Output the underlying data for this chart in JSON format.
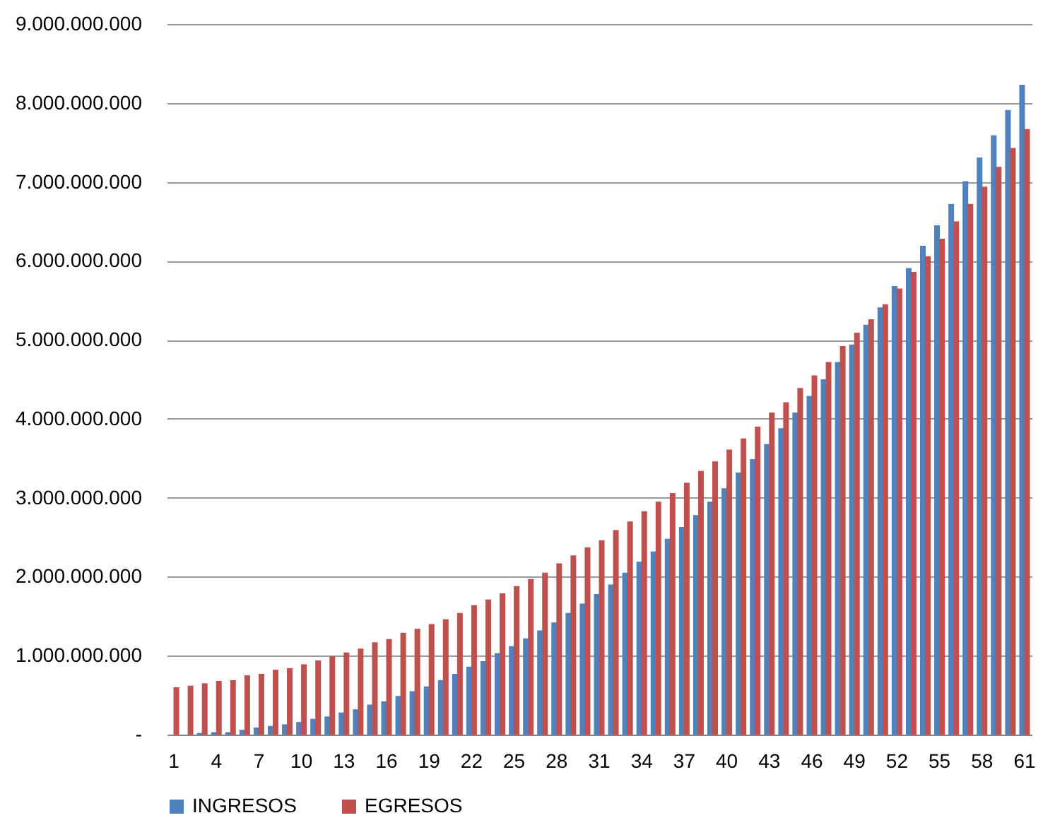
{
  "chart_data": {
    "type": "bar",
    "categories": [
      "1",
      null,
      null,
      "4",
      null,
      null,
      "7",
      null,
      null,
      "10",
      null,
      null,
      "13",
      null,
      null,
      "16",
      null,
      null,
      "19",
      null,
      null,
      "22",
      null,
      null,
      "25",
      null,
      null,
      "28",
      null,
      null,
      "31",
      null,
      null,
      "34",
      null,
      null,
      "37",
      null,
      null,
      "40",
      null,
      null,
      "43",
      null,
      null,
      "46",
      null,
      null,
      "49",
      null,
      null,
      "52",
      null,
      null,
      "55",
      null,
      null,
      "58",
      null,
      null,
      "61"
    ],
    "series": [
      {
        "name": "INGRESOS",
        "color": "#4f81bd",
        "values": [
          null,
          null,
          20000000,
          30000000,
          30000000,
          60000000,
          90000000,
          110000000,
          130000000,
          160000000,
          200000000,
          230000000,
          280000000,
          320000000,
          380000000,
          420000000,
          490000000,
          550000000,
          610000000,
          690000000,
          770000000,
          860000000,
          930000000,
          1030000000,
          1120000000,
          1220000000,
          1320000000,
          1420000000,
          1540000000,
          1660000000,
          1780000000,
          1900000000,
          2050000000,
          2190000000,
          2320000000,
          2480000000,
          2630000000,
          2780000000,
          2950000000,
          3120000000,
          3320000000,
          3490000000,
          3680000000,
          3880000000,
          4080000000,
          4290000000,
          4500000000,
          4720000000,
          4940000000,
          5190000000,
          5410000000,
          5680000000,
          5910000000,
          6190000000,
          6450000000,
          6720000000,
          7010000000,
          7310000000,
          7590000000,
          7910000000,
          8230000000
        ]
      },
      {
        "name": "EGRESOS",
        "color": "#c0504d",
        "values": [
          600000000,
          620000000,
          650000000,
          680000000,
          690000000,
          750000000,
          770000000,
          820000000,
          840000000,
          890000000,
          940000000,
          990000000,
          1040000000,
          1090000000,
          1170000000,
          1210000000,
          1290000000,
          1340000000,
          1400000000,
          1460000000,
          1540000000,
          1640000000,
          1710000000,
          1790000000,
          1880000000,
          1970000000,
          2050000000,
          2170000000,
          2270000000,
          2370000000,
          2460000000,
          2590000000,
          2700000000,
          2830000000,
          2950000000,
          3060000000,
          3190000000,
          3340000000,
          3460000000,
          3610000000,
          3750000000,
          3900000000,
          4080000000,
          4210000000,
          4390000000,
          4550000000,
          4720000000,
          4920000000,
          5090000000,
          5260000000,
          5450000000,
          5650000000,
          5860000000,
          6060000000,
          6280000000,
          6500000000,
          6720000000,
          6940000000,
          7190000000,
          7430000000,
          7670000000
        ]
      }
    ],
    "ylim": [
      0,
      9000000000
    ],
    "yticks": [
      {
        "value": 0,
        "label": "-"
      },
      {
        "value": 1000000000,
        "label": "1.000.000.000"
      },
      {
        "value": 2000000000,
        "label": "2.000.000.000"
      },
      {
        "value": 3000000000,
        "label": "3.000.000.000"
      },
      {
        "value": 4000000000,
        "label": "4.000.000.000"
      },
      {
        "value": 5000000000,
        "label": "5.000.000.000"
      },
      {
        "value": 6000000000,
        "label": "6.000.000.000"
      },
      {
        "value": 7000000000,
        "label": "7.000.000.000"
      },
      {
        "value": 8000000000,
        "label": "8.000.000.000"
      },
      {
        "value": 9000000000,
        "label": "9.000.000.000"
      }
    ],
    "grid": "y",
    "legend": "bottom"
  }
}
